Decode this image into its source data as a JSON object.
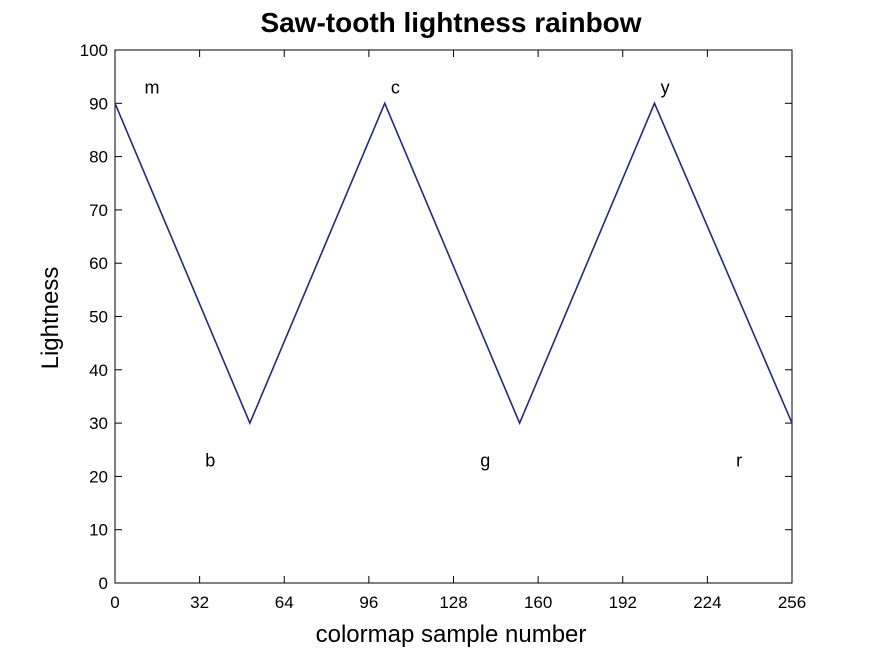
{
  "chart_data": {
    "type": "line",
    "title": "Saw-tooth lightness rainbow",
    "xlabel": "colormap sample number",
    "ylabel": "Lightness",
    "xlim": [
      0,
      256
    ],
    "ylim": [
      0,
      100
    ],
    "xticks": [
      0,
      32,
      64,
      96,
      128,
      160,
      192,
      224,
      256
    ],
    "yticks": [
      0,
      10,
      20,
      30,
      40,
      50,
      60,
      70,
      80,
      90,
      100
    ],
    "grid": false,
    "line_color": "#1f2a8a",
    "series": [
      {
        "x": [
          0,
          51,
          102,
          153,
          204,
          256
        ],
        "y": [
          90,
          30,
          90,
          30,
          90,
          30
        ]
      }
    ],
    "annotations": [
      {
        "text": "m",
        "x": 14,
        "y": 93
      },
      {
        "text": "b",
        "x": 36,
        "y": 23
      },
      {
        "text": "c",
        "x": 106,
        "y": 93
      },
      {
        "text": "g",
        "x": 140,
        "y": 23
      },
      {
        "text": "y",
        "x": 208,
        "y": 93
      },
      {
        "text": "r",
        "x": 236,
        "y": 23
      }
    ]
  }
}
